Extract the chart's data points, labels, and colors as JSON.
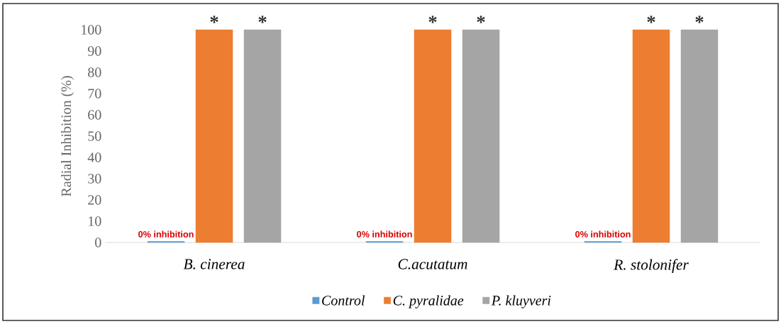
{
  "chart_data": {
    "type": "bar",
    "ylabel": "Radial Inhibition (%)",
    "categories": [
      "B. cinerea",
      "C.acutatum",
      "R. stolonifer"
    ],
    "series": [
      {
        "name": "Control",
        "color": "#5b9bd5",
        "values": [
          0.5,
          0.5,
          0.5
        ],
        "value_labels": [
          "0% inhibition",
          "0% inhibition",
          "0% inhibition"
        ]
      },
      {
        "name": "C. pyralidae",
        "color": "#ed7d31",
        "values": [
          100,
          100,
          100
        ],
        "value_labels": [
          "*",
          "*",
          "*"
        ]
      },
      {
        "name": "P. kluyveri",
        "color": "#a5a5a5",
        "values": [
          100,
          100,
          100
        ],
        "value_labels": [
          "*",
          "*",
          "*"
        ]
      }
    ],
    "ylim": [
      0,
      100
    ],
    "yticks": [
      0,
      10,
      20,
      30,
      40,
      50,
      60,
      70,
      80,
      90,
      100
    ],
    "grid": false,
    "legend": "bottom"
  }
}
